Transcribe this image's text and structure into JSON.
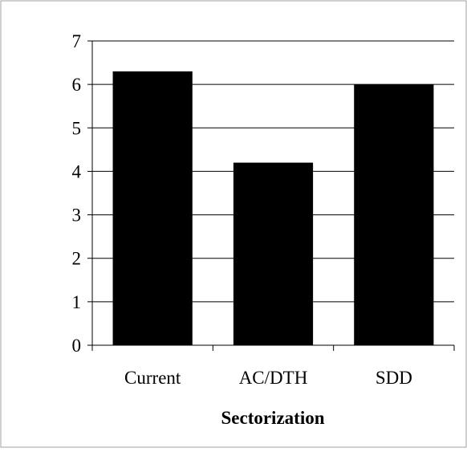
{
  "chart_data": {
    "type": "bar",
    "title": "",
    "xlabel": "Sectorization",
    "ylabel": "",
    "categories": [
      "Current",
      "AC/DTH",
      "SDD"
    ],
    "values": [
      6.3,
      4.2,
      6.0
    ],
    "ylim": [
      0,
      7
    ],
    "yticks": [
      "0",
      "1",
      "2",
      "3",
      "4",
      "5",
      "6",
      "7"
    ],
    "grid": true,
    "legend": "none",
    "colors": {
      "bar": "#000000",
      "grid": "#000000",
      "background": "#ffffff",
      "frame": "#a0a0a0"
    }
  }
}
